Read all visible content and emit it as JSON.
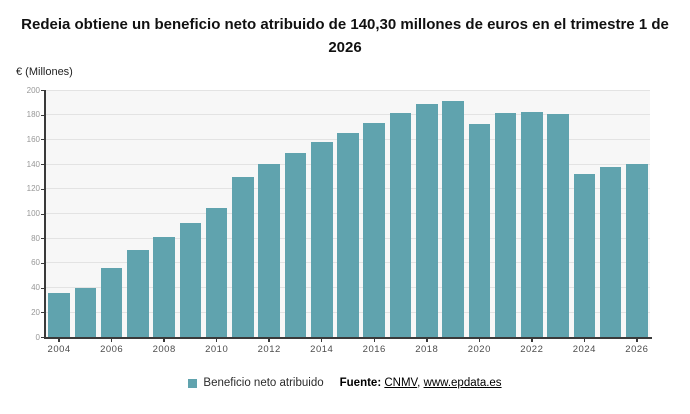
{
  "title": "Redeia obtiene un beneficio neto atribuido de 140,30 millones de euros en el trimestre 1 de 2026",
  "y_axis_title": "€ (Millones)",
  "legend": {
    "label": "Beneficio neto atribuido",
    "swatch_color": "#60a3ae"
  },
  "source": {
    "label": "Fuente:",
    "link_cnmv": "CNMV",
    "separator": ", ",
    "link_epdata": "www.epdata.es"
  },
  "chart_data": {
    "type": "bar",
    "title": "Redeia obtiene un beneficio neto atribuido de 140,30 millones de euros en el trimestre 1 de 2026",
    "xlabel": "",
    "ylabel": "€ (Millones)",
    "categories": [
      "2004",
      "2005",
      "2006",
      "2007",
      "2008",
      "2009",
      "2010",
      "2011",
      "2012",
      "2013",
      "2014",
      "2015",
      "2016",
      "2017",
      "2018",
      "2019",
      "2020",
      "2021",
      "2022",
      "2023",
      "2024",
      "2025",
      "2026"
    ],
    "series": [
      {
        "name": "Beneficio neto atribuido",
        "values": [
          35.4,
          39.5,
          55.7,
          70.3,
          81.1,
          92.6,
          104.6,
          129.7,
          140.1,
          149.3,
          157.7,
          165.5,
          173.5,
          181.5,
          188.9,
          190.8,
          172.2,
          181.1,
          182.0,
          180.3,
          132.0,
          137.9,
          140.3
        ]
      }
    ],
    "xticklabels": [
      "2004",
      "2006",
      "2008",
      "2010",
      "2012",
      "2014",
      "2016",
      "2018",
      "2020",
      "2022",
      "2024",
      "2026"
    ],
    "ylim": [
      0,
      200
    ],
    "ytick_step": 20,
    "grid": true,
    "plot_background": "#f7f7f7",
    "gridline_color": "#e3e3e3",
    "bar_color": "#60a3ae",
    "legend_position": "bottom"
  }
}
